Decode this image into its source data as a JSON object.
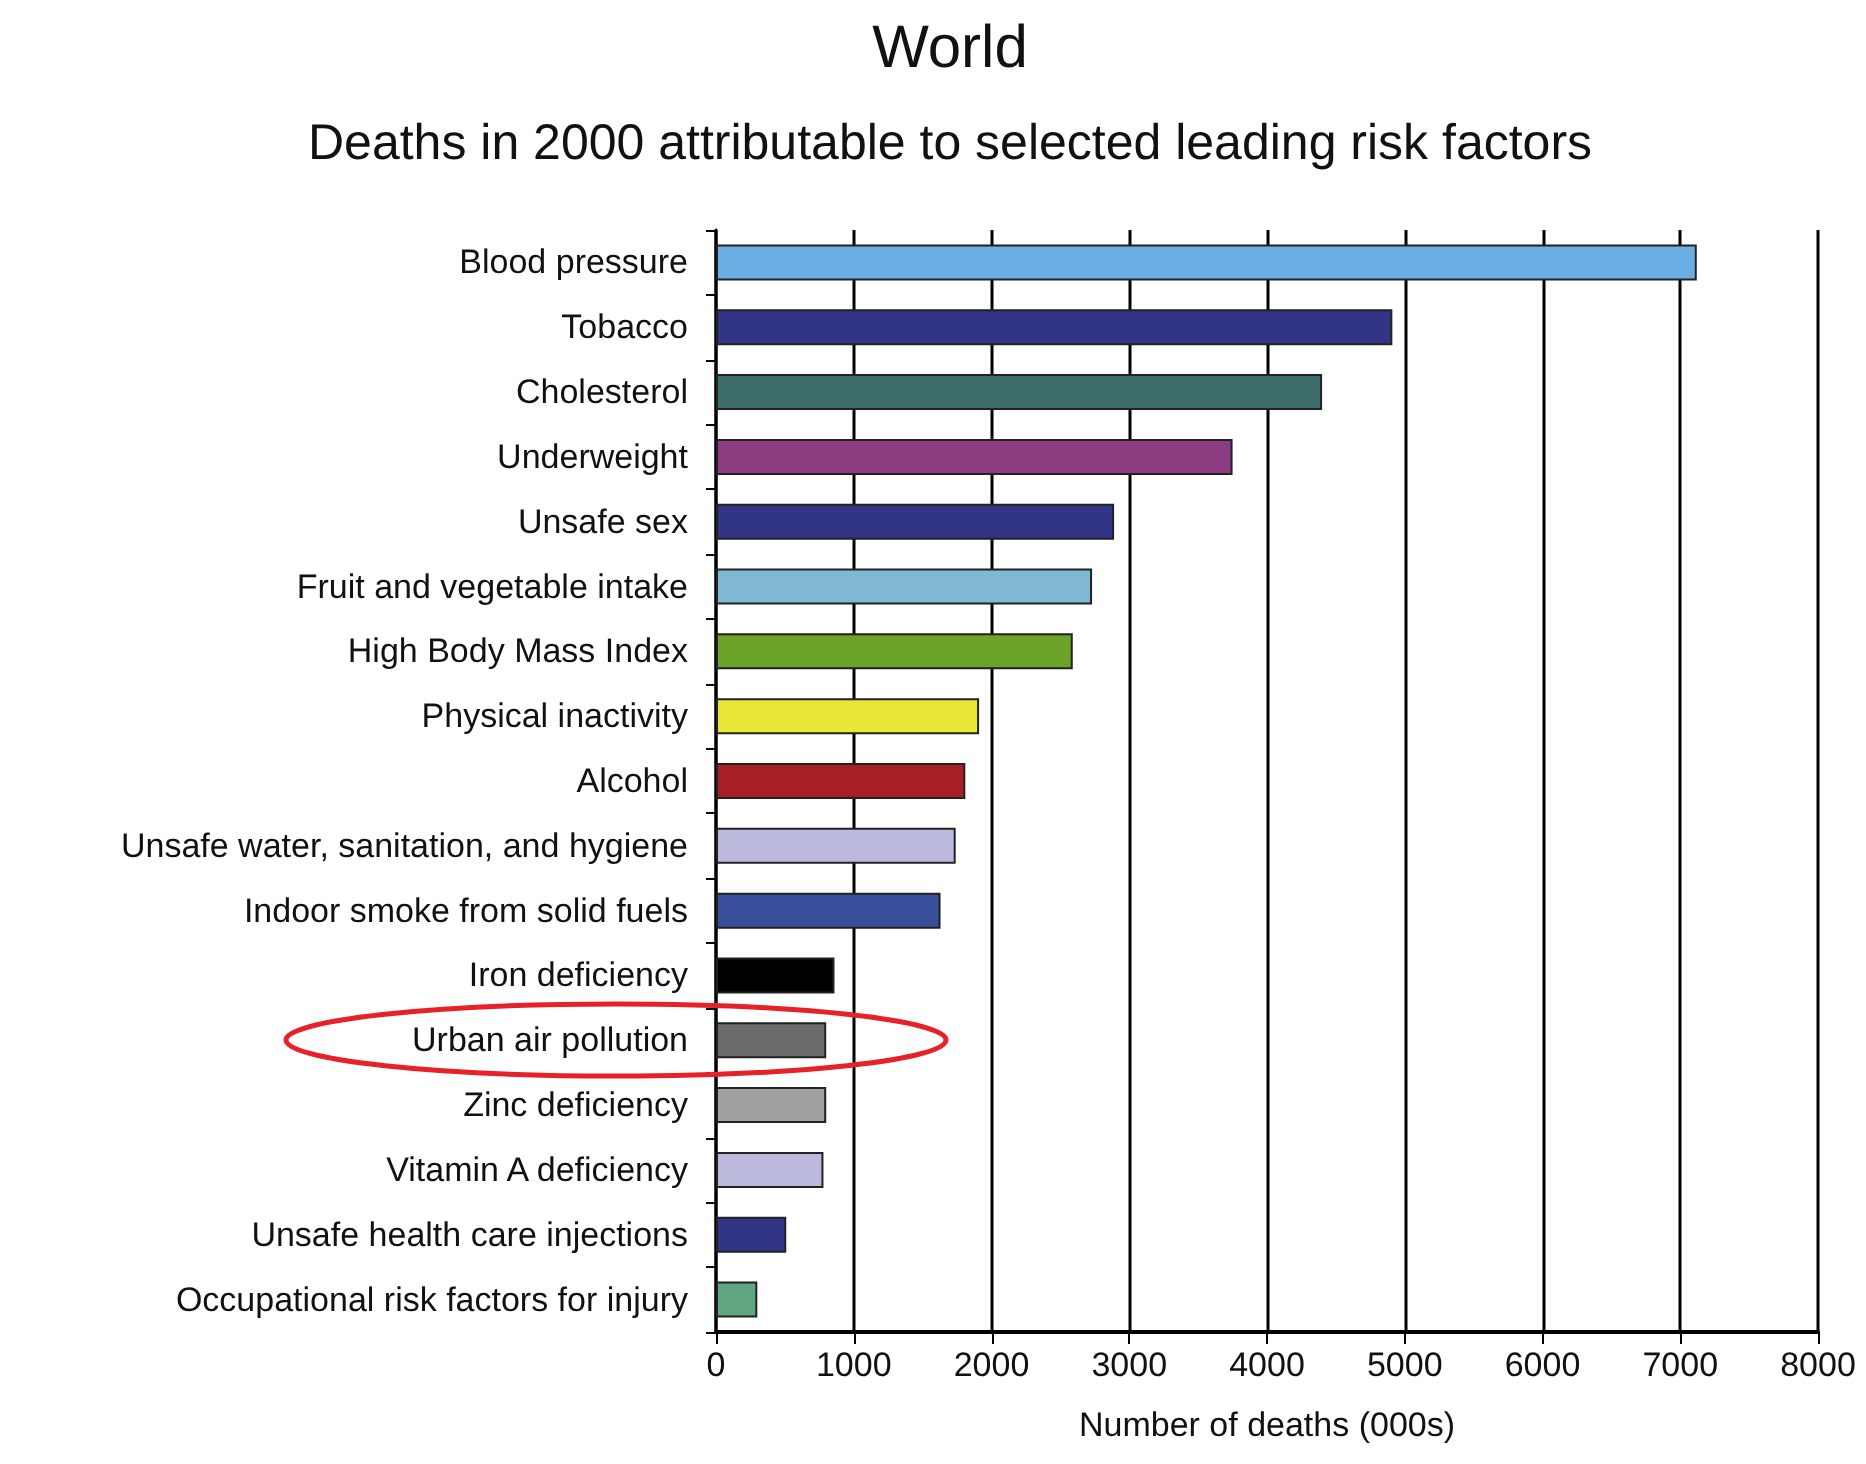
{
  "chart_data": {
    "type": "bar",
    "orientation": "horizontal",
    "title": "World",
    "subtitle": "Deaths in 2000 attributable to selected leading risk factors",
    "xlabel": "Number of deaths (000s)",
    "categories": [
      "Blood pressure",
      "Tobacco",
      "Cholesterol",
      "Underweight",
      "Unsafe sex",
      "Fruit and vegetable intake",
      "High Body Mass Index",
      "Physical inactivity",
      "Alcohol",
      "Unsafe water, sanitation, and hygiene",
      "Indoor smoke from solid fuels",
      "Iron deficiency",
      "Urban air pollution",
      "Zinc deficiency",
      "Vitamin A deficiency",
      "Unsafe health care injections",
      "Occupational risk factors for injury"
    ],
    "values": [
      7120,
      4910,
      4400,
      3750,
      2890,
      2730,
      2590,
      1910,
      1810,
      1740,
      1630,
      860,
      800,
      800,
      780,
      510,
      300
    ],
    "colors": [
      "#6aaee3",
      "#323585",
      "#3d6e6c",
      "#8c3d82",
      "#323585",
      "#7fb8d0",
      "#6aa22a",
      "#e7e536",
      "#a81e25",
      "#bcbadc",
      "#3a4f9c",
      "#000000",
      "#6b6b6b",
      "#a0a0a0",
      "#bcbadc",
      "#323585",
      "#5fa57f"
    ],
    "xlim": [
      0,
      8000
    ],
    "xticks": [
      0,
      1000,
      2000,
      3000,
      4000,
      5000,
      6000,
      7000,
      8000
    ],
    "grid": "x"
  }
}
